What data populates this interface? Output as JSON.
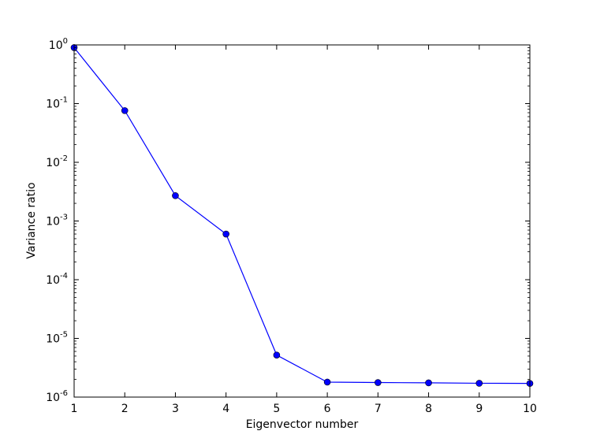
{
  "chart_data": {
    "type": "line",
    "title": "",
    "xlabel": "Eigenvector number",
    "ylabel": "Variance ratio",
    "x_scale": "linear",
    "y_scale": "log",
    "xlim": [
      1,
      10
    ],
    "ylim": [
      1e-06,
      1
    ],
    "grid": false,
    "legend": "none",
    "x_ticks": [
      1,
      2,
      3,
      4,
      5,
      6,
      7,
      8,
      9,
      10
    ],
    "y_ticks": [
      {
        "value": 1,
        "base": "10",
        "exponent": "0"
      },
      {
        "value": 0.1,
        "base": "10",
        "exponent": "-1"
      },
      {
        "value": 0.01,
        "base": "10",
        "exponent": "-2"
      },
      {
        "value": 0.001,
        "base": "10",
        "exponent": "-3"
      },
      {
        "value": 0.0001,
        "base": "10",
        "exponent": "-4"
      },
      {
        "value": 1e-05,
        "base": "10",
        "exponent": "-5"
      },
      {
        "value": 1e-06,
        "base": "10",
        "exponent": "-6"
      }
    ],
    "series": [
      {
        "color": "#0000ff",
        "marker": "circle",
        "x": [
          1,
          2,
          3,
          4,
          5,
          6,
          7,
          8,
          9,
          10
        ],
        "y": [
          0.9,
          0.076,
          0.0027,
          0.0006,
          5.2e-06,
          1.8e-06,
          1.77e-06,
          1.75e-06,
          1.72e-06,
          1.71e-06
        ]
      }
    ]
  }
}
